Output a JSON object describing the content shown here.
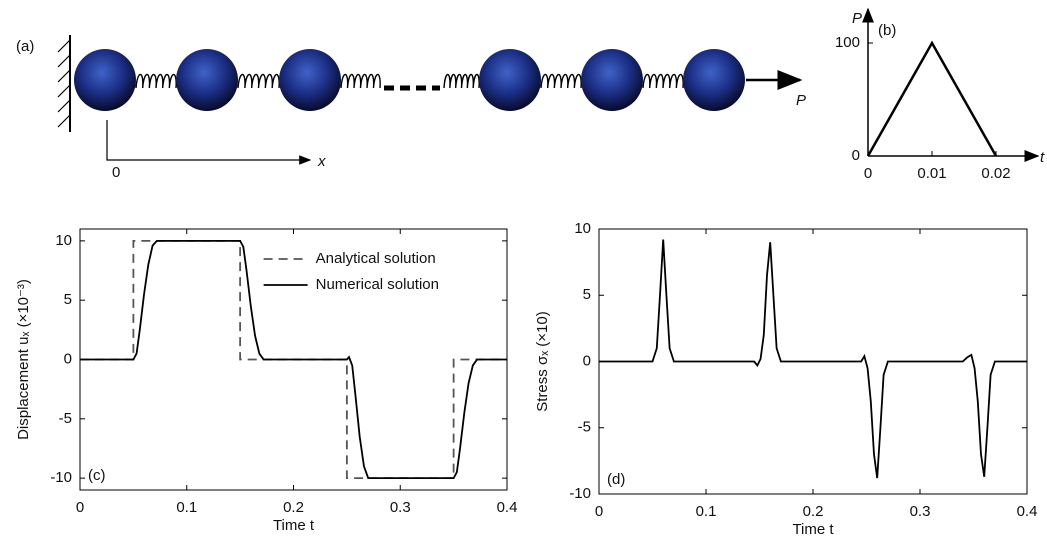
{
  "diagram": {
    "label": "(a)",
    "origin_label": "0",
    "axis_label": "x",
    "force_label": "P"
  },
  "chart_data": [
    {
      "type": "line",
      "panel_label": "(b)",
      "xlabel": "t",
      "ylabel": "P",
      "x": [
        0,
        0.01,
        0.02
      ],
      "values": [
        0,
        100,
        0
      ],
      "color": "#000000",
      "xlim": [
        0,
        0.025
      ],
      "ylim": [
        0,
        130
      ],
      "xticks": [
        0,
        0.01,
        0.02
      ],
      "yticks": [
        0,
        100
      ]
    },
    {
      "type": "line",
      "panel_label": "(c)",
      "xlabel": "Time t",
      "ylabel": "Displacement uₓ (×10⁻³)",
      "xlim": [
        0,
        0.4
      ],
      "ylim": [
        -11,
        11
      ],
      "xticks": [
        0,
        0.1,
        0.2,
        0.3,
        0.4
      ],
      "yticks": [
        -10,
        -5,
        0,
        5,
        10
      ],
      "grid": false,
      "legend": "upper center",
      "series": [
        {
          "name": "Analytical solution",
          "color": "#555555",
          "linestyle": "dashed",
          "x": [
            0,
            0.05,
            0.05,
            0.15,
            0.15,
            0.25,
            0.25,
            0.35,
            0.35,
            0.4
          ],
          "values": [
            0,
            0,
            10,
            10,
            0,
            0,
            -10,
            -10,
            0,
            0
          ]
        },
        {
          "name": "Numerical solution",
          "color": "#000000",
          "linestyle": "solid",
          "x": [
            0,
            0.05,
            0.053,
            0.056,
            0.06,
            0.064,
            0.068,
            0.072,
            0.08,
            0.15,
            0.153,
            0.156,
            0.16,
            0.164,
            0.168,
            0.172,
            0.18,
            0.25,
            0.252,
            0.255,
            0.258,
            0.262,
            0.266,
            0.27,
            0.28,
            0.35,
            0.353,
            0.356,
            0.36,
            0.364,
            0.368,
            0.372,
            0.38,
            0.4
          ],
          "values": [
            0,
            0,
            0.5,
            2.5,
            5.5,
            8,
            9.6,
            10,
            10,
            10,
            9.5,
            7.5,
            4.5,
            2,
            0.5,
            0,
            0,
            0,
            0.2,
            -0.5,
            -3,
            -6.5,
            -9,
            -10,
            -10,
            -10,
            -9.5,
            -7.5,
            -4.5,
            -2,
            -0.5,
            0,
            0,
            0
          ]
        }
      ]
    },
    {
      "type": "line",
      "panel_label": "(d)",
      "xlabel": "Time t",
      "ylabel": "Stress σₓ (×10)",
      "xlim": [
        0,
        0.4
      ],
      "ylim": [
        -10,
        10
      ],
      "xticks": [
        0,
        0.1,
        0.2,
        0.3,
        0.4
      ],
      "yticks": [
        -10,
        -5,
        0,
        5,
        10
      ],
      "grid": false,
      "color": "#000000",
      "x": [
        0,
        0.05,
        0.054,
        0.057,
        0.06,
        0.063,
        0.066,
        0.07,
        0.145,
        0.148,
        0.151,
        0.154,
        0.157,
        0.16,
        0.163,
        0.166,
        0.17,
        0.245,
        0.248,
        0.251,
        0.254,
        0.257,
        0.26,
        0.263,
        0.266,
        0.27,
        0.34,
        0.344,
        0.348,
        0.351,
        0.354,
        0.357,
        0.36,
        0.363,
        0.366,
        0.37,
        0.4
      ],
      "values": [
        0,
        0,
        1,
        5,
        9.2,
        5,
        1,
        0,
        0,
        -0.3,
        0.2,
        2,
        6.5,
        9,
        5,
        1,
        0,
        0,
        0.4,
        -0.5,
        -3,
        -7,
        -8.8,
        -5,
        -1,
        0,
        0,
        0.3,
        0.5,
        -0.5,
        -3,
        -7,
        -8.7,
        -5,
        -1,
        0,
        0
      ]
    }
  ]
}
